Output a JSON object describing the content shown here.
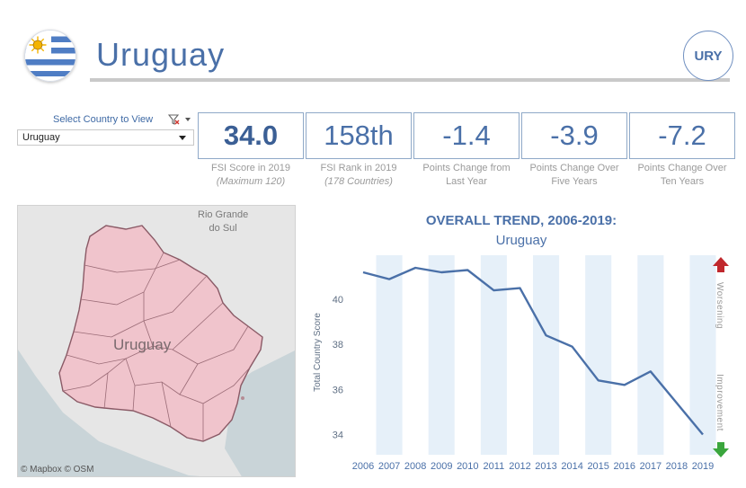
{
  "header": {
    "country_name": "Uruguay",
    "country_code": "URY",
    "flag_icon": "uruguay-flag-icon"
  },
  "selector": {
    "label": "Select Country to View",
    "value": "Uruguay",
    "filter_icon": "filter-clear-icon"
  },
  "kpis": [
    {
      "value": "34.0",
      "caption": "FSI Score in 2019",
      "sub": "(Maximum 120)"
    },
    {
      "value": "158th",
      "caption": "FSI Rank in 2019",
      "sub": "(178 Countries)"
    },
    {
      "value": "-1.4",
      "caption": "Points Change from",
      "sub_plain": "Last Year"
    },
    {
      "value": "-3.9",
      "caption": "Points Change Over",
      "sub_plain": "Five Years"
    },
    {
      "value": "-7.2",
      "caption": "Points Change Over",
      "sub_plain": "Ten Years"
    }
  ],
  "map": {
    "label_region": "Uruguay",
    "neighbor_label_line1": "Rio Grande",
    "neighbor_label_line2": "do Sul",
    "attribution": "© Mapbox  © OSM",
    "fill_color": "#f0c4cc",
    "stroke_color": "#8a5a66"
  },
  "chart_data": {
    "type": "line",
    "title": "OVERALL TREND, 2006-2019:",
    "subtitle": "Uruguay",
    "ylabel": "Total Country Score",
    "x": [
      "2006",
      "2007",
      "2008",
      "2009",
      "2010",
      "2011",
      "2012",
      "2013",
      "2014",
      "2015",
      "2016",
      "2017",
      "2018",
      "2019"
    ],
    "values": [
      41.2,
      40.9,
      41.4,
      41.2,
      41.3,
      40.4,
      40.5,
      38.4,
      37.9,
      36.4,
      36.2,
      36.8,
      35.4,
      34.0
    ],
    "ylim": [
      33.5,
      41.8
    ],
    "yticks": [
      34,
      36,
      38,
      40
    ],
    "line_color": "#4a70a8",
    "band_color": "#e6f0f9",
    "worsening_label": "Worsening",
    "improvement_label": "Improvement",
    "worse_arrow_color": "#c0282d",
    "better_arrow_color": "#3aa63d"
  }
}
